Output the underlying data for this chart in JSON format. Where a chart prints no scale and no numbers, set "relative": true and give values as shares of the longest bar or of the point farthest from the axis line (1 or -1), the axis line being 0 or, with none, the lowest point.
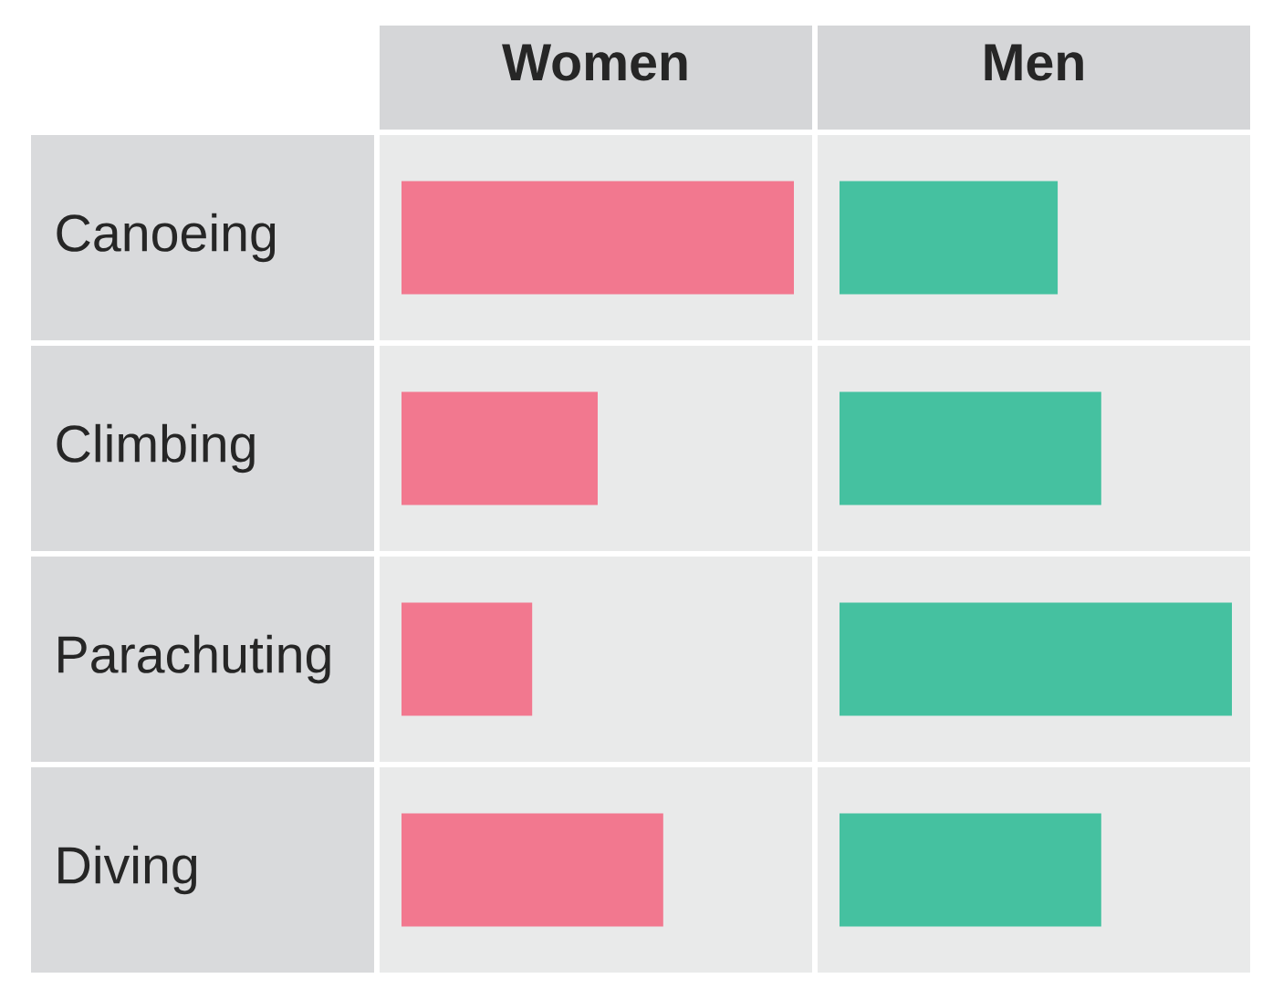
{
  "chart_data": [
    {
      "type": "bar",
      "orientation": "horizontal",
      "relative": true,
      "title": "Women",
      "categories": [
        "Canoeing",
        "Climbing",
        "Parachuting",
        "Diving"
      ],
      "values": [
        1,
        0.5,
        0.333,
        0.667
      ],
      "color": "#f2788f"
    },
    {
      "type": "bar",
      "orientation": "horizontal",
      "relative": true,
      "title": "Men",
      "categories": [
        null,
        null,
        null,
        null
      ],
      "values": [
        0.556,
        0.667,
        1,
        0.667
      ],
      "color": "#45c1a0"
    }
  ]
}
